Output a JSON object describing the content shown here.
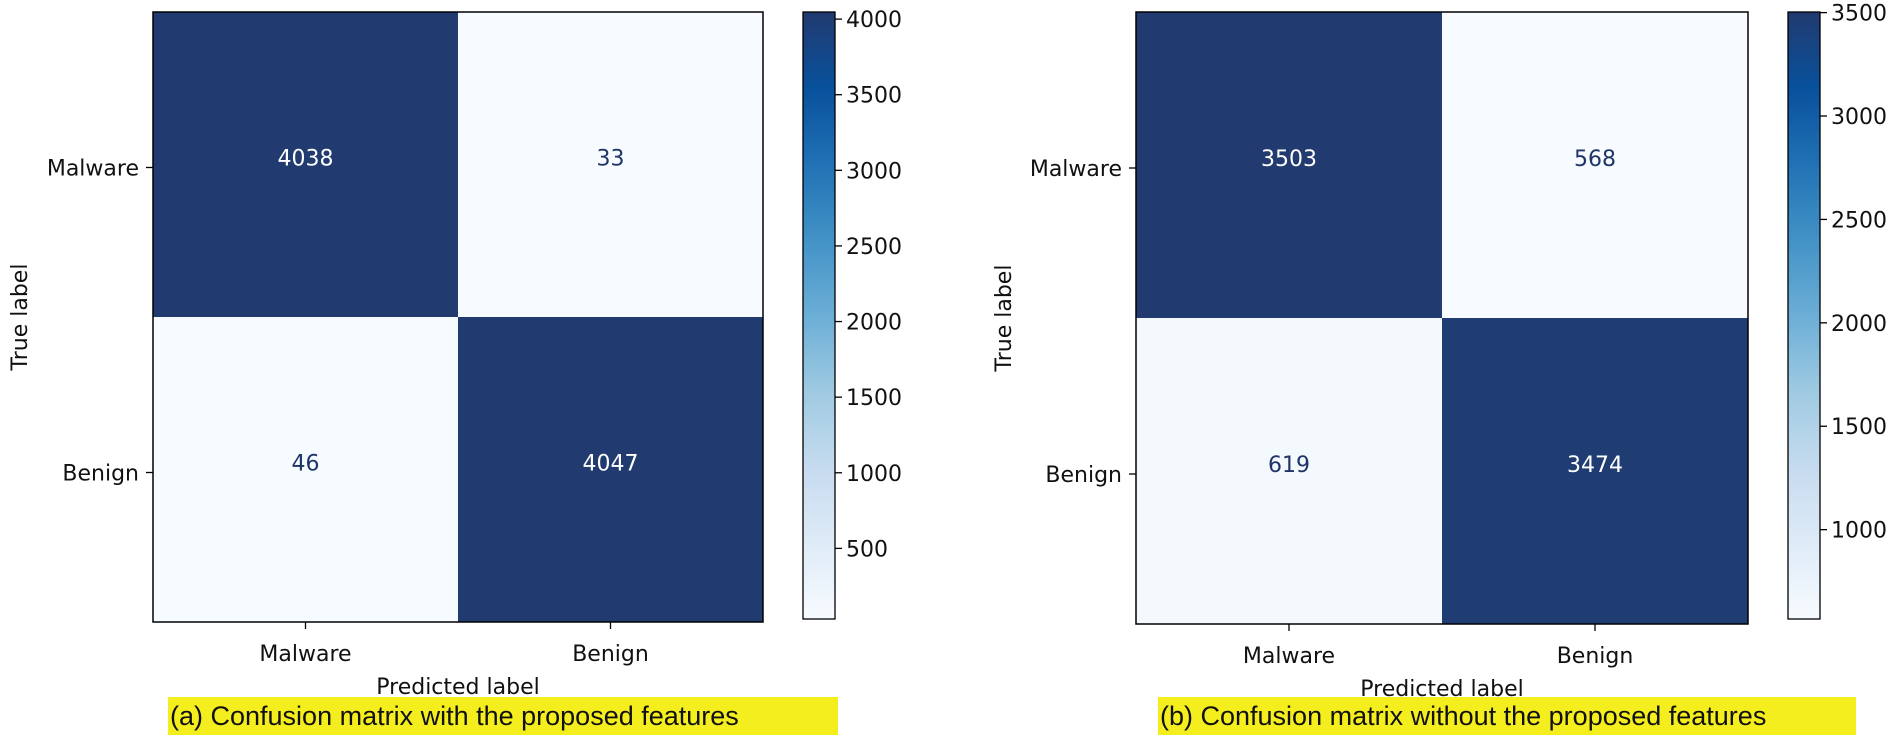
{
  "chart_data": [
    {
      "type": "heatmap",
      "caption": "(a) Confusion matrix with the proposed features",
      "xlabel": "Predicted label",
      "ylabel": "True label",
      "x_categories": [
        "Malware",
        "Benign"
      ],
      "y_categories": [
        "Malware",
        "Benign"
      ],
      "values": [
        [
          4038,
          33
        ],
        [
          46,
          4047
        ]
      ],
      "colormap": "Blues",
      "colorbar": {
        "range": [
          33,
          4047
        ],
        "ticks": [
          500,
          1000,
          1500,
          2000,
          2500,
          3000,
          3500,
          4000
        ]
      }
    },
    {
      "type": "heatmap",
      "caption": "(b) Confusion matrix without the proposed features",
      "xlabel": "Predicted label",
      "ylabel": "True label",
      "x_categories": [
        "Malware",
        "Benign"
      ],
      "y_categories": [
        "Malware",
        "Benign"
      ],
      "values": [
        [
          3503,
          568
        ],
        [
          619,
          3474
        ]
      ],
      "colormap": "Blues",
      "colorbar": {
        "range": [
          568,
          3503
        ],
        "ticks": [
          1000,
          1500,
          2000,
          2500,
          3000,
          3500
        ]
      }
    }
  ]
}
